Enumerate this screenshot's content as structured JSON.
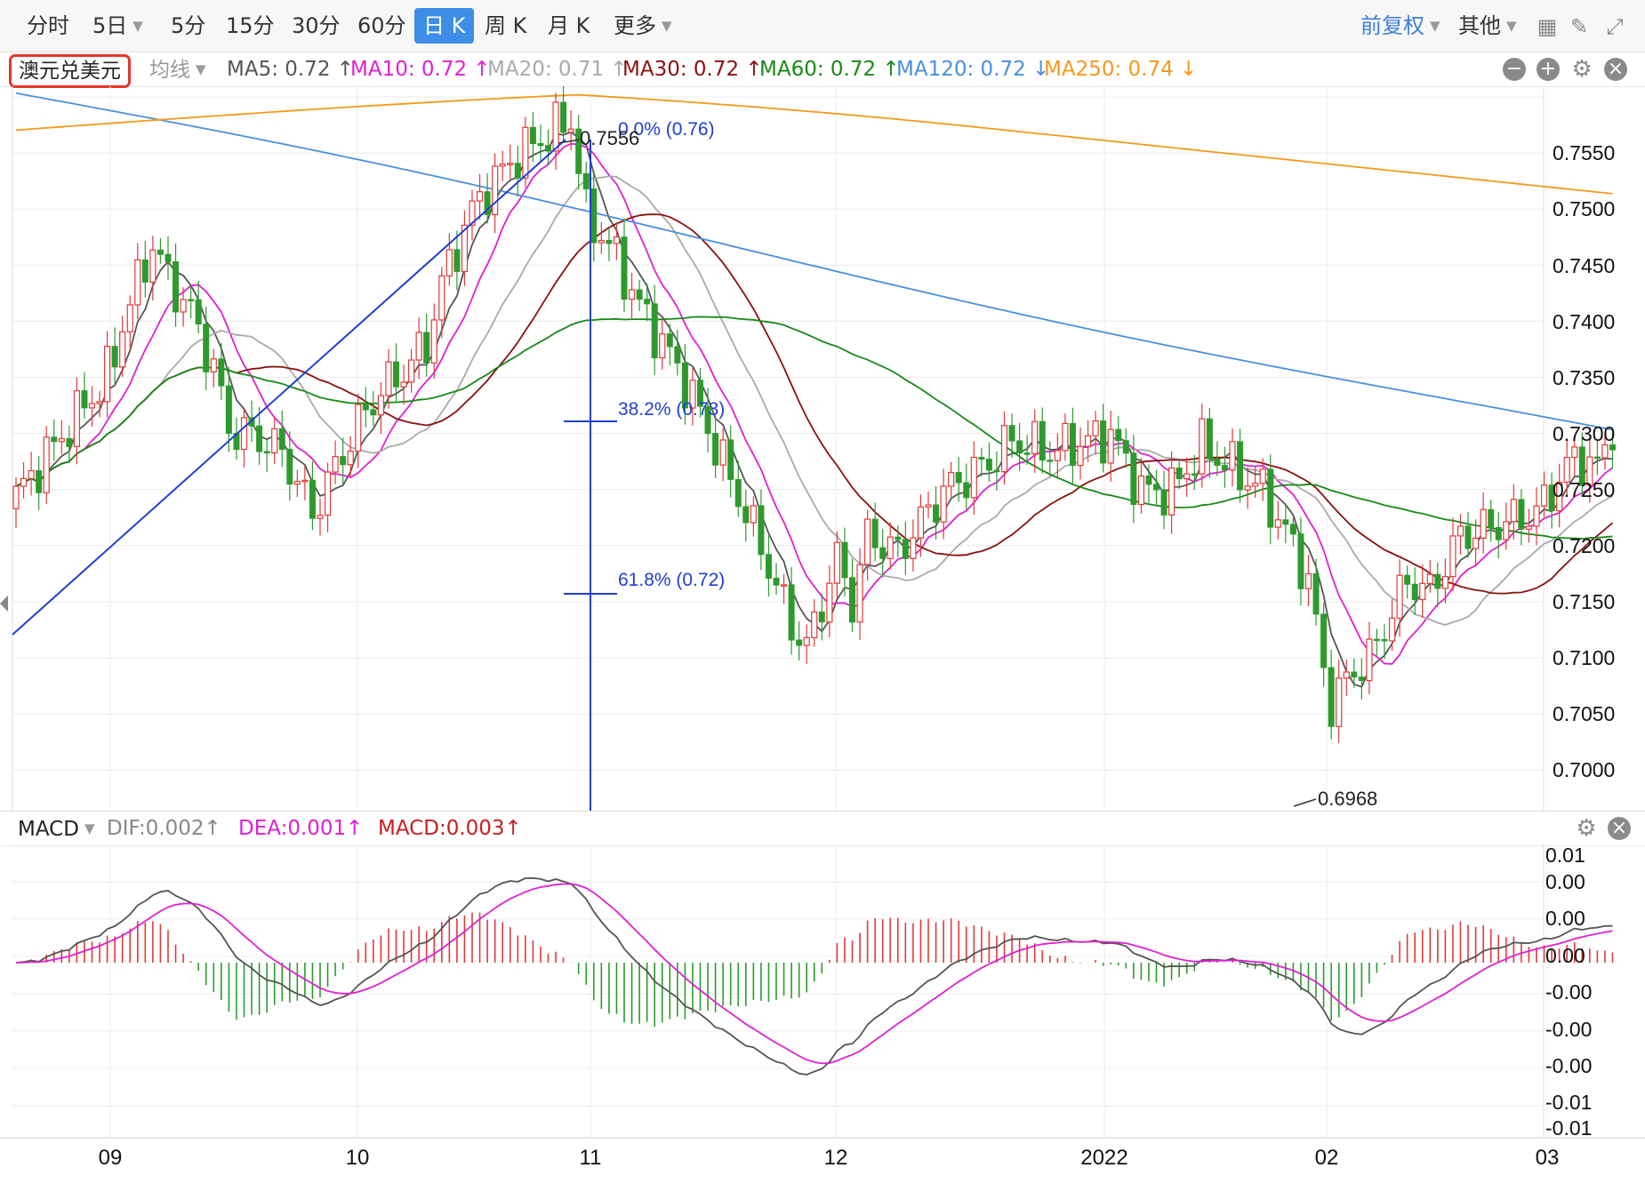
{
  "toolbar": {
    "periods": [
      "分时",
      "5日",
      "5分",
      "15分",
      "30分",
      "60分",
      "日 K",
      "周 K",
      "月 K",
      "更多"
    ],
    "active_period": "日 K",
    "adjust_label": "前复权",
    "other_label": "其他"
  },
  "symbol": "澳元兑美元",
  "ma_bar": {
    "selector": "均线",
    "items": [
      {
        "text": "MA5: 0.72 ↑",
        "color": "#555555"
      },
      {
        "text": "MA10: 0.72 ↑",
        "color": "#e020d0"
      },
      {
        "text": "MA20: 0.71 ↑",
        "color": "#aaaaaa"
      },
      {
        "text": "MA30: 0.72 ↑",
        "color": "#8b1010"
      },
      {
        "text": "MA60: 0.72 ↑",
        "color": "#178a17"
      },
      {
        "text": "MA120: 0.72 ↓",
        "color": "#4a8fe0"
      },
      {
        "text": "MA250: 0.74 ↓",
        "color": "#f39a1c"
      }
    ]
  },
  "macd_bar": {
    "title": "MACD",
    "dif": "DIF:0.002↑",
    "dea": "DEA:0.001↑",
    "macd": "MACD:0.003↑"
  },
  "chart_data": {
    "type": "candlestick",
    "y_ticks": [
      "0.7550",
      "0.7500",
      "0.7450",
      "0.7400",
      "0.7350",
      "0.7300",
      "0.7250",
      "0.7200",
      "0.7150",
      "0.7100",
      "0.7050",
      "0.7000"
    ],
    "ylim": [
      0.6968,
      0.7556
    ],
    "x_ticks": [
      "09",
      "10",
      "11",
      "12",
      "2022",
      "02",
      "03"
    ],
    "annotations": {
      "high": "0.7556",
      "low": "0.6968"
    },
    "fibonacci": [
      "0.0% (0.76)",
      "38.2% (0.73)",
      "61.8% (0.72)"
    ],
    "macd_ticks": [
      "0.01",
      "0.00",
      "0.00",
      "0.00",
      "-0.00",
      "-0.00",
      "-0.00",
      "-0.01",
      "-0.01"
    ],
    "series": [
      {
        "name": "MA5",
        "color": "#555555"
      },
      {
        "name": "MA10",
        "color": "#e020d0"
      },
      {
        "name": "MA20",
        "color": "#aaaaaa"
      },
      {
        "name": "MA30",
        "color": "#8b1010"
      },
      {
        "name": "MA60",
        "color": "#178a17"
      },
      {
        "name": "MA120",
        "color": "#4a8fe0"
      },
      {
        "name": "MA250",
        "color": "#f39a1c"
      },
      {
        "name": "DIF",
        "color": "#555555"
      },
      {
        "name": "DEA",
        "color": "#e020d0"
      }
    ],
    "colors": {
      "up": "#e03a3a",
      "down": "#2e9a2e",
      "fib": "#1f3fcf"
    }
  }
}
